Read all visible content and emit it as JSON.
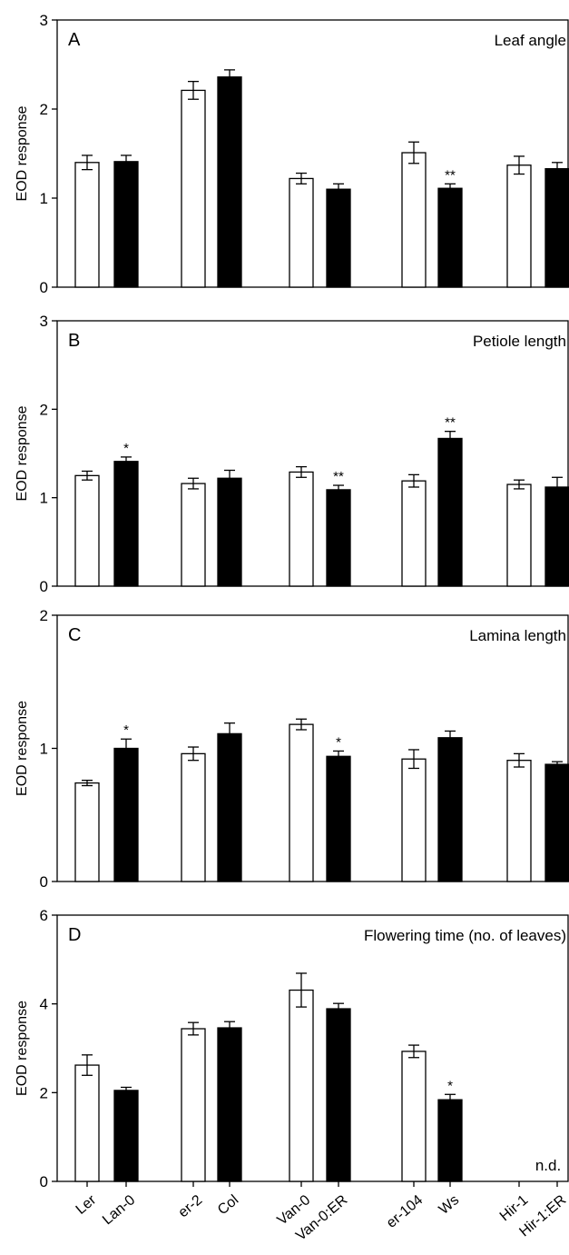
{
  "chart_data": {
    "type": "bar",
    "layout": "4 stacked panels sharing one x axis",
    "categories": [
      "Ler",
      "Lan-0",
      "er-2",
      "Col",
      "Van-0",
      "Van-0:ER",
      "er-104",
      "Ws",
      "Hir-1",
      "Hir-1:ER"
    ],
    "bar_colors": [
      "#ffffff",
      "#000000",
      "#ffffff",
      "#000000",
      "#ffffff",
      "#000000",
      "#ffffff",
      "#000000",
      "#ffffff",
      "#000000"
    ],
    "ylabel": "EOD response",
    "panels": [
      {
        "letter": "A",
        "title": "Leaf angle",
        "ylim": [
          0,
          3
        ],
        "yticks": [
          0,
          1,
          2,
          3
        ],
        "values": [
          1.4,
          1.41,
          2.21,
          2.36,
          1.22,
          1.1,
          1.51,
          1.11,
          1.37,
          1.33
        ],
        "errors": [
          0.08,
          0.07,
          0.1,
          0.08,
          0.06,
          0.06,
          0.12,
          0.05,
          0.1,
          0.07
        ],
        "significance": [
          "",
          "",
          "",
          "",
          "",
          "",
          "",
          "**",
          "",
          ""
        ],
        "annotations": []
      },
      {
        "letter": "B",
        "title": "Petiole length",
        "ylim": [
          0,
          3
        ],
        "yticks": [
          0,
          1,
          2,
          3
        ],
        "values": [
          1.25,
          1.41,
          1.16,
          1.22,
          1.29,
          1.09,
          1.19,
          1.67,
          1.15,
          1.12
        ],
        "errors": [
          0.05,
          0.05,
          0.06,
          0.09,
          0.06,
          0.05,
          0.07,
          0.08,
          0.05,
          0.11
        ],
        "significance": [
          "",
          "*",
          "",
          "",
          "",
          "**",
          "",
          "**",
          "",
          ""
        ],
        "annotations": []
      },
      {
        "letter": "C",
        "title": "Lamina length",
        "ylim": [
          0,
          2
        ],
        "yticks": [
          0,
          1,
          2
        ],
        "values": [
          0.74,
          1.0,
          0.96,
          1.11,
          1.18,
          0.94,
          0.92,
          1.08,
          0.91,
          0.88
        ],
        "errors": [
          0.02,
          0.07,
          0.05,
          0.08,
          0.04,
          0.04,
          0.07,
          0.05,
          0.05,
          0.02
        ],
        "significance": [
          "",
          "*",
          "",
          "",
          "",
          "*",
          "",
          "",
          "",
          ""
        ],
        "annotations": []
      },
      {
        "letter": "D",
        "title": "Flowering time (no. of leaves)",
        "ylim": [
          0,
          6
        ],
        "yticks": [
          0,
          2,
          4,
          6
        ],
        "values": [
          2.62,
          2.05,
          3.44,
          3.46,
          4.31,
          3.89,
          2.93,
          1.84,
          null,
          null
        ],
        "errors": [
          0.23,
          0.07,
          0.14,
          0.14,
          0.38,
          0.12,
          0.14,
          0.12,
          null,
          null
        ],
        "significance": [
          "",
          "",
          "",
          "",
          "",
          "",
          "",
          "*",
          "",
          ""
        ],
        "annotations": [
          {
            "text": "n.d.",
            "category": "Hir-1:ER"
          }
        ]
      }
    ]
  }
}
